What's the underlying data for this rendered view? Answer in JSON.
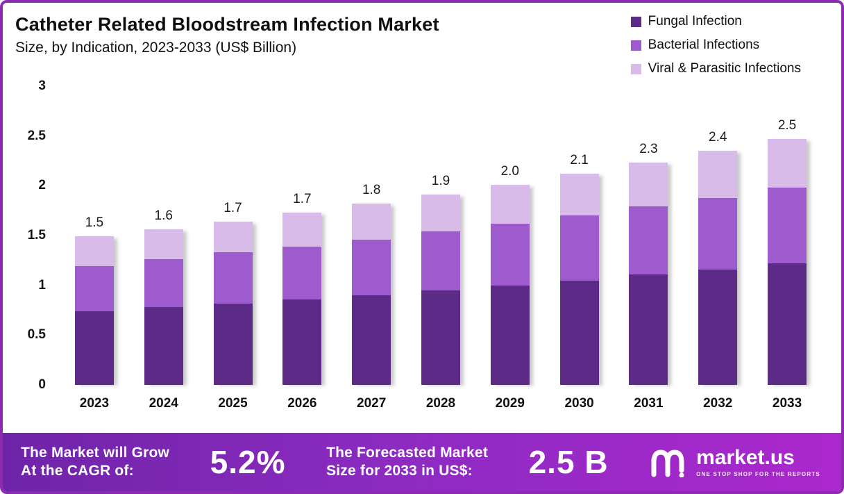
{
  "header": {
    "title": "Catheter Related Bloodstream Infection Market",
    "subtitle": "Size, by Indication, 2023-2033 (US$ Billion)"
  },
  "legend": [
    {
      "label": "Fungal Infection",
      "color": "#5b2b87"
    },
    {
      "label": "Bacterial Infections",
      "color": "#9d5bcd"
    },
    {
      "label": "Viral & Parasitic Infections",
      "color": "#d8bbe8"
    }
  ],
  "chart_data": {
    "type": "bar",
    "stacked": true,
    "title": "Catheter Related Bloodstream Infection Market Size, by Indication, 2023-2033 (US$ Billion)",
    "categories": [
      "2023",
      "2024",
      "2025",
      "2026",
      "2027",
      "2028",
      "2029",
      "2030",
      "2031",
      "2032",
      "2033"
    ],
    "series": [
      {
        "name": "Fungal Infection",
        "color": "#5b2b87",
        "values": [
          0.74,
          0.78,
          0.82,
          0.86,
          0.9,
          0.95,
          1.0,
          1.05,
          1.11,
          1.16,
          1.22
        ]
      },
      {
        "name": "Bacterial Infections",
        "color": "#9d5bcd",
        "values": [
          0.45,
          0.48,
          0.51,
          0.53,
          0.56,
          0.59,
          0.62,
          0.65,
          0.68,
          0.72,
          0.76
        ]
      },
      {
        "name": "Viral & Parasitic Infections",
        "color": "#d8bbe8",
        "values": [
          0.3,
          0.3,
          0.31,
          0.34,
          0.36,
          0.37,
          0.39,
          0.42,
          0.44,
          0.47,
          0.49
        ]
      }
    ],
    "total_labels": [
      "1.5",
      "1.6",
      "1.7",
      "1.7",
      "1.8",
      "1.9",
      "2.0",
      "2.1",
      "2.3",
      "2.4",
      "2.5"
    ],
    "xlabel": "",
    "ylabel": "",
    "ylim": [
      0,
      3
    ],
    "yticks": [
      "0",
      "0.5",
      "1",
      "1.5",
      "2",
      "2.5",
      "3"
    ],
    "grid": false,
    "legend_position": "top-right"
  },
  "footer": {
    "cagr_label_line1": "The Market will Grow",
    "cagr_label_line2": "At the CAGR of:",
    "cagr_value": "5.2%",
    "forecast_label_line1": "The Forecasted Market",
    "forecast_label_line2": "Size for 2033 in US$:",
    "forecast_value": "2.5 B",
    "brand": "market.us",
    "brand_tagline": "ONE STOP SHOP FOR THE REPORTS"
  }
}
